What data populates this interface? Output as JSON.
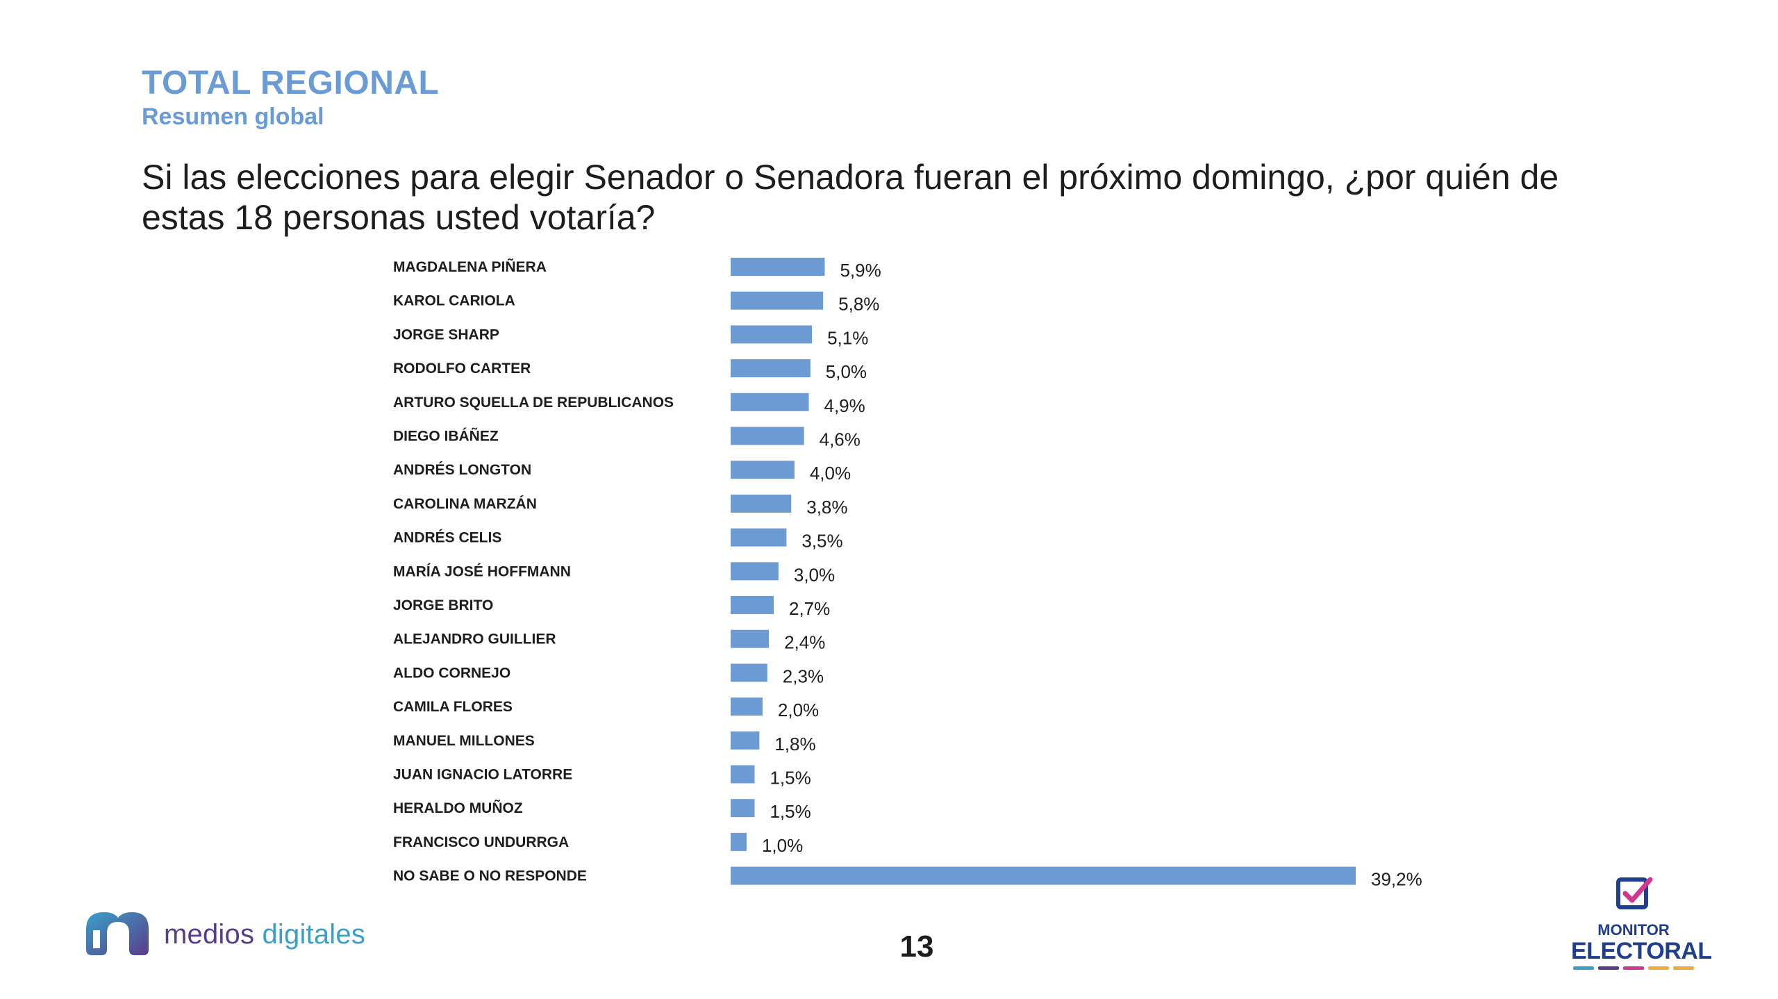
{
  "header": {
    "title": "TOTAL REGIONAL",
    "subtitle": "Resumen global",
    "question": "Si las elecciones para elegir Senador o Senadora fueran el próximo domingo, ¿por quién de estas 18 personas usted votaría?"
  },
  "chart_data": {
    "type": "bar",
    "orientation": "horizontal",
    "categories": [
      "MAGDALENA PIÑERA",
      "KAROL CARIOLA",
      "JORGE SHARP",
      "RODOLFO CARTER",
      "ARTURO SQUELLA DE REPUBLICANOS",
      "DIEGO IBÁÑEZ",
      "ANDRÉS LONGTON",
      "CAROLINA MARZÁN",
      "ANDRÉS CELIS",
      "MARÍA JOSÉ HOFFMANN",
      "JORGE BRITO",
      "ALEJANDRO GUILLIER",
      "ALDO CORNEJO",
      "CAMILA FLORES",
      "MANUEL MILLONES",
      "JUAN IGNACIO LATORRE",
      "HERALDO MUÑOZ",
      "FRANCISCO UNDURRGA",
      "NO SABE O NO RESPONDE"
    ],
    "values": [
      5.9,
      5.8,
      5.1,
      5.0,
      4.9,
      4.6,
      4.0,
      3.8,
      3.5,
      3.0,
      2.7,
      2.4,
      2.3,
      2.0,
      1.8,
      1.5,
      1.5,
      1.0,
      39.2
    ],
    "value_labels": [
      "5,9%",
      "5,8%",
      "5,1%",
      "5,0%",
      "4,9%",
      "4,6%",
      "4,0%",
      "3,8%",
      "3,5%",
      "3,0%",
      "2,7%",
      "2,4%",
      "2,3%",
      "2,0%",
      "1,8%",
      "1,5%",
      "1,5%",
      "1,0%",
      "39,2%"
    ],
    "unit": "%",
    "xlim": [
      0,
      39.2
    ],
    "grid": false,
    "bar_color": "#6b9bd2"
  },
  "footer": {
    "page_number": "13",
    "logo_left": {
      "word1": "medios",
      "word2": "digitales"
    },
    "logo_right": {
      "line1": "MONITOR",
      "line2": "ELECTORAL"
    }
  },
  "colors": {
    "title": "#6a9bd4",
    "text": "#1d1d1b",
    "bar": "#6b9bd2",
    "brand_purple": "#5a3d8a",
    "brand_cyan": "#3aa0c8",
    "monitor_navy": "#1f3f8c",
    "monitor_check": "#d0388f",
    "dash_colors": [
      "#3aa0c8",
      "#5a3d8a",
      "#d0388f",
      "#f2a93b",
      "#f2a93b"
    ]
  }
}
